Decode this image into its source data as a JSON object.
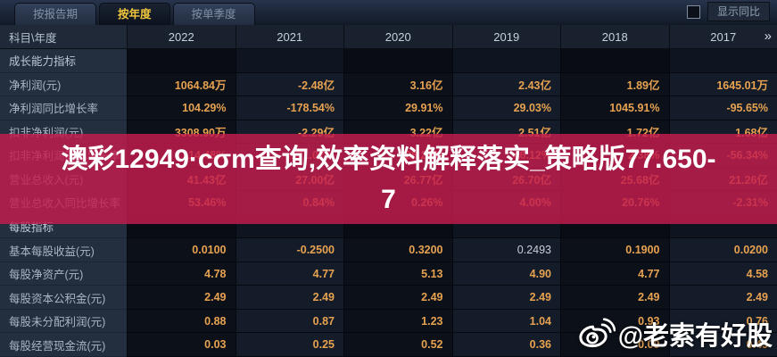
{
  "tabs": [
    {
      "label": "按报告期",
      "active": false
    },
    {
      "label": "按年度",
      "active": true
    },
    {
      "label": "按单季度",
      "active": false
    }
  ],
  "controls": {
    "show_yoy_label": "显示同比",
    "checkbox_checked": false
  },
  "header": {
    "corner": "科目\\年度",
    "years": [
      "2022",
      "2021",
      "2020",
      "2019",
      "2018",
      "2017"
    ],
    "more_years_icon": "»"
  },
  "sections": [
    {
      "title": "成长能力指标",
      "rows": [
        {
          "label": "净利润(元)",
          "values": [
            "1064.84万",
            "-2.48亿",
            "3.16亿",
            "2.43亿",
            "1.89亿",
            "1645.01万"
          ]
        },
        {
          "label": "净利润同比增长率",
          "values": [
            "104.29%",
            "-178.54%",
            "29.91%",
            "29.03%",
            "1045.91%",
            "-95.65%"
          ]
        },
        {
          "label": "扣非净利润(元)",
          "values": [
            "3308.90万",
            "-2.29亿",
            "3.22亿",
            "2.51亿",
            "1.72亿",
            "1.68亿"
          ]
        },
        {
          "label": "扣非净利润同比增长率",
          "values": [
            "114.48%",
            "-171.07%",
            "28.29%",
            "46.12%",
            "2.38%",
            "-56.34%"
          ]
        },
        {
          "label": "营业总收入(元)",
          "values": [
            "41.43亿",
            "27.00亿",
            "26.77亿",
            "26.70亿",
            "25.68亿",
            "21.26亿"
          ]
        },
        {
          "label": "营业总收入同比增长率",
          "values": [
            "53.46%",
            "0.84%",
            "0.26%",
            "4.00%",
            "20.76%",
            "-2.31%"
          ]
        }
      ]
    },
    {
      "title": "每股指标",
      "rows": [
        {
          "label": "基本每股收益(元)",
          "values": [
            "0.0100",
            "-0.2500",
            "0.3200",
            "0.2493",
            "0.1900",
            "0.0200"
          ],
          "muted_col": 3
        },
        {
          "label": "每股净资产(元)",
          "values": [
            "4.78",
            "4.77",
            "5.13",
            "4.90",
            "4.77",
            "4.58"
          ]
        },
        {
          "label": "每股资本公积金(元)",
          "values": [
            "2.49",
            "2.49",
            "2.49",
            "2.49",
            "2.49",
            "2.49"
          ]
        },
        {
          "label": "每股未分配利润(元)",
          "values": [
            "0.88",
            "0.87",
            "1.23",
            "1.04",
            "0.93",
            "0.76"
          ]
        },
        {
          "label": "每股经营现金流(元)",
          "values": [
            "0.03",
            "0.25",
            "0.52",
            "0.36",
            "0.09",
            "0.49"
          ]
        }
      ]
    }
  ],
  "watermark": {
    "line1": "澳彩12949·cσm查询,效率资料解释落实_策略版77.650-",
    "line2": "7"
  },
  "credit": {
    "handle": "@老索有好股"
  },
  "colors": {
    "accent_gold": "#f2c73c",
    "value_orange": "#e7a251",
    "watermark_red": "#c61c4e",
    "label_text": "#a9b5c4",
    "header_bg": "#19212f"
  }
}
